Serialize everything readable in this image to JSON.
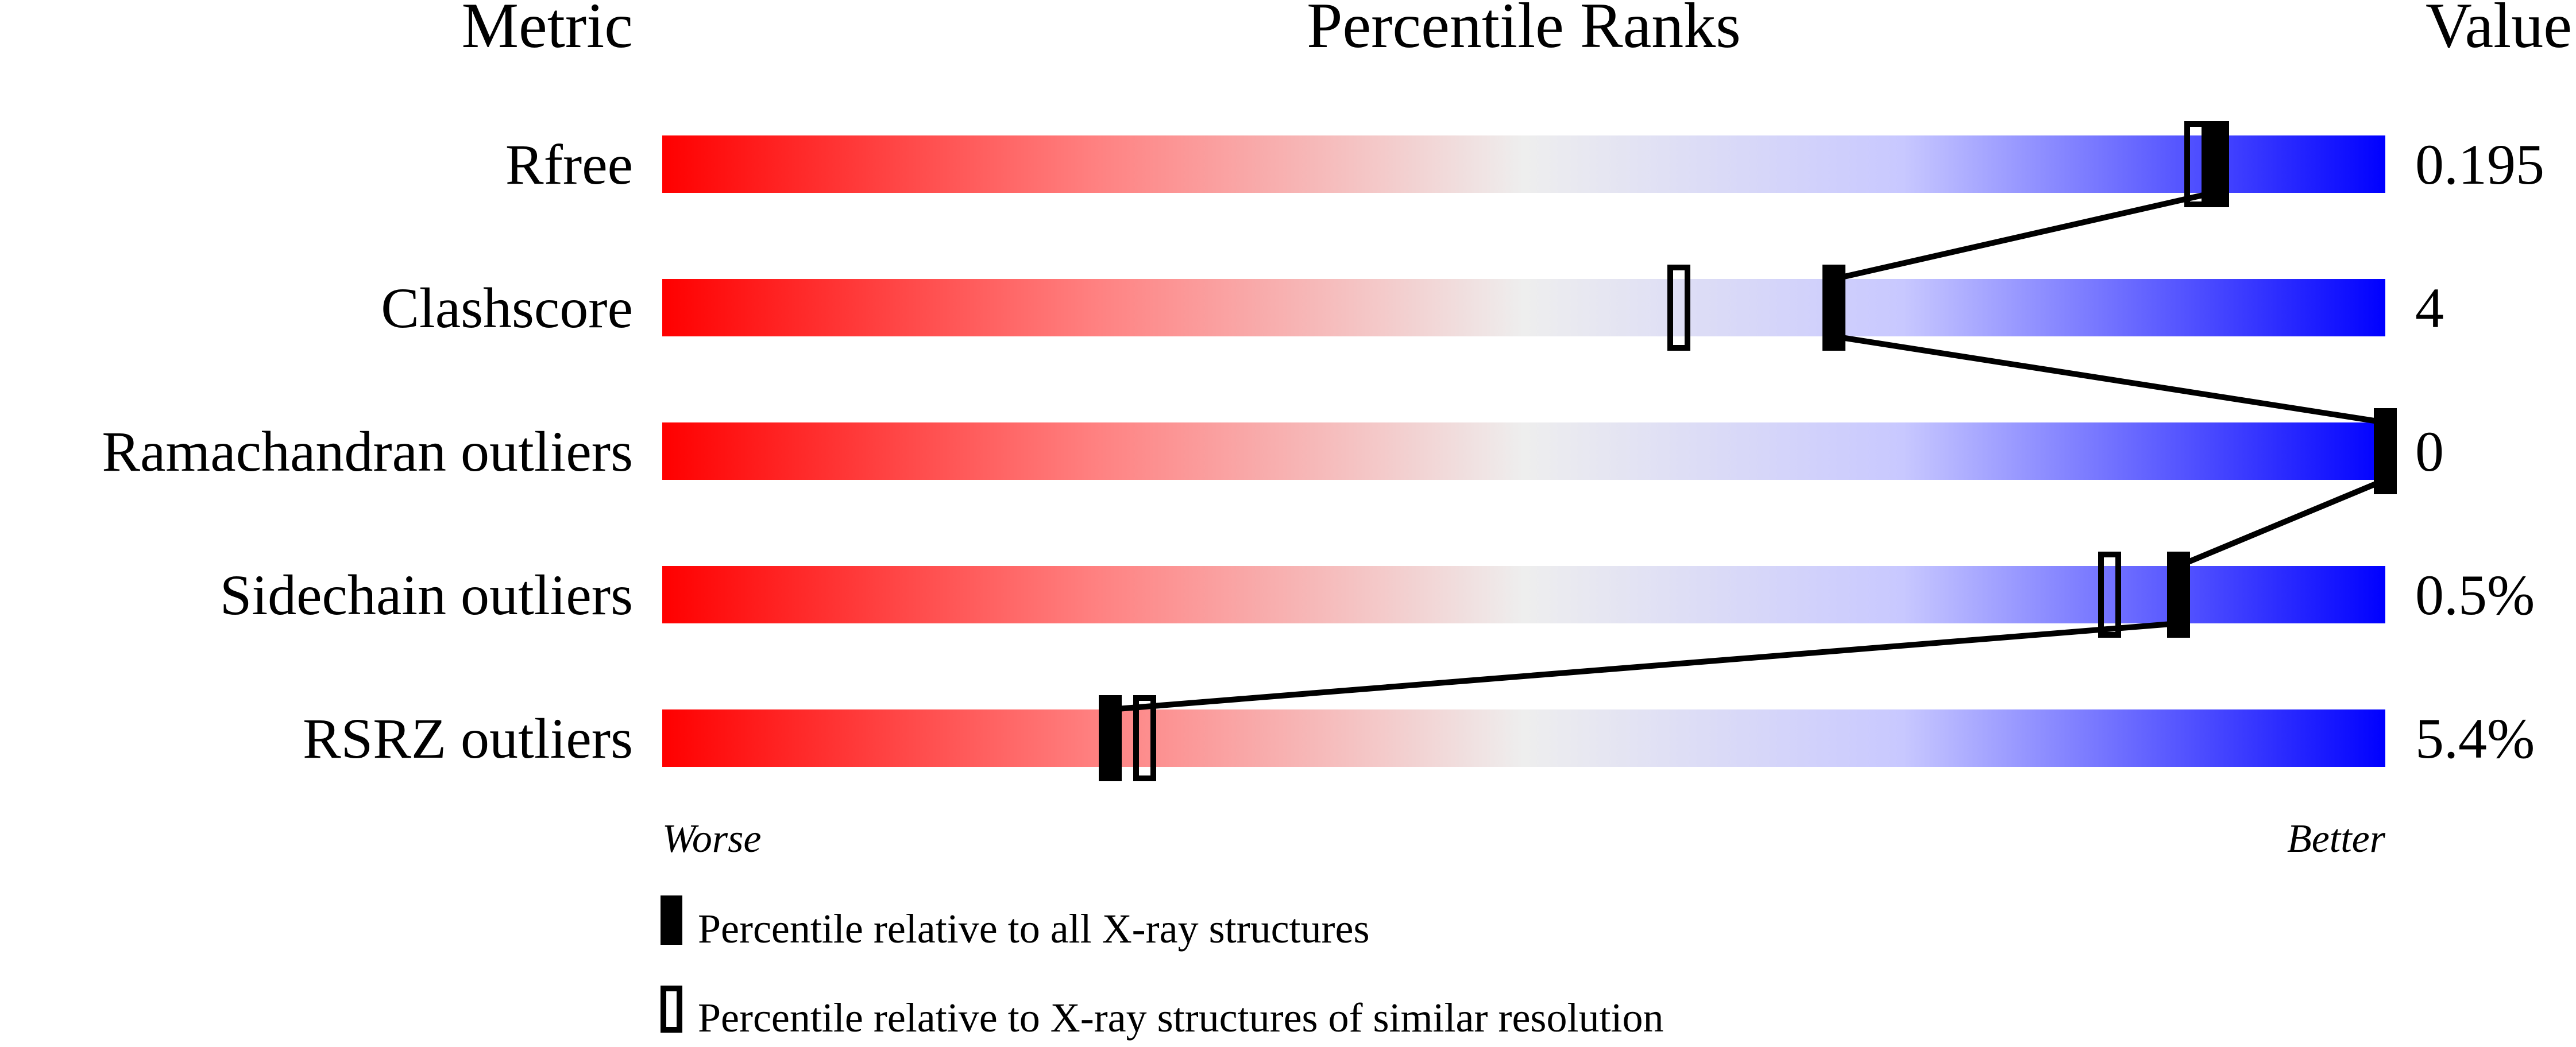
{
  "headers": {
    "metric": "Metric",
    "percentile": "Percentile Ranks",
    "value": "Value"
  },
  "axis_labels": {
    "worse": "Worse",
    "better": "Better"
  },
  "legend": {
    "all": "Percentile relative to all X-ray structures",
    "similar": "Percentile relative to X-ray structures of similar resolution"
  },
  "colors": {
    "worse": "#ff0000",
    "middle": "#eeeeee",
    "better": "#0000ff",
    "marker": "#000000"
  },
  "chart_data": {
    "type": "bar",
    "xlim": [
      0,
      100
    ],
    "x_meaning": "percentile rank",
    "categories": [
      "Rfree",
      "Clashscore",
      "Ramachandran outliers",
      "Sidechain outliers",
      "RSRZ outliers"
    ],
    "values_text": [
      "0.195",
      "4",
      "0",
      "0.5%",
      "5.4%"
    ],
    "series": [
      {
        "name": "Percentile relative to all X-ray structures",
        "marker": "filled",
        "values": [
          90,
          68,
          100,
          88,
          26
        ]
      },
      {
        "name": "Percentile relative to X-ray structures of similar resolution",
        "marker": "open",
        "values": [
          89,
          59,
          100,
          84,
          28
        ]
      }
    ]
  }
}
